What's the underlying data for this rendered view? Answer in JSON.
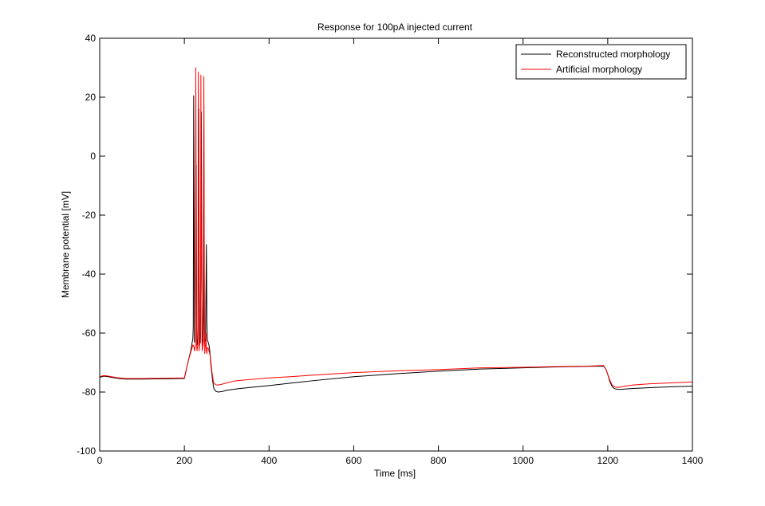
{
  "chart_data": {
    "type": "line",
    "title": "Response for 100pA injected current",
    "xlabel": "Time [ms]",
    "ylabel": "Membrane potential [mV]",
    "xlim": [
      0,
      1400
    ],
    "ylim": [
      -100,
      40
    ],
    "xticks": [
      0,
      200,
      400,
      600,
      800,
      1000,
      1200,
      1400
    ],
    "yticks": [
      -100,
      -80,
      -60,
      -40,
      -20,
      0,
      20,
      40
    ],
    "grid": false,
    "legend_position": "top-right",
    "series": [
      {
        "name": "Reconstructed morphology",
        "color": "#000000",
        "x": [
          0,
          10,
          20,
          40,
          60,
          80,
          100,
          150,
          200,
          205,
          210,
          215,
          218,
          220,
          221,
          222,
          223,
          224,
          226,
          227,
          228,
          229,
          230,
          232,
          234,
          235,
          236,
          238,
          240,
          241,
          242,
          244,
          246,
          247,
          248,
          250,
          252,
          253,
          254,
          256,
          258,
          260,
          262,
          265,
          268,
          270,
          275,
          280,
          290,
          300,
          320,
          350,
          400,
          450,
          500,
          600,
          700,
          800,
          900,
          1000,
          1100,
          1150,
          1190,
          1195,
          1200,
          1205,
          1210,
          1215,
          1220,
          1225,
          1230,
          1240,
          1260,
          1300,
          1350,
          1400
        ],
        "y": [
          -75,
          -74.6,
          -74.8,
          -75.3,
          -75.6,
          -75.6,
          -75.6,
          -75.5,
          -75.4,
          -72,
          -69,
          -66,
          -63.5,
          -62,
          -58,
          20.5,
          -18,
          -63,
          -62,
          -25,
          -3,
          -58,
          -64,
          -62,
          16,
          -40,
          -64,
          -62,
          15,
          -44,
          -64,
          -62,
          17,
          -55,
          -63,
          -62,
          -30,
          -56,
          -62,
          -63,
          -64,
          -66,
          -70,
          -74,
          -77.5,
          -79,
          -79.8,
          -80,
          -79.8,
          -79.4,
          -79,
          -78.5,
          -77.8,
          -77,
          -76.2,
          -74.8,
          -73.8,
          -72.9,
          -72.2,
          -71.8,
          -71.4,
          -71.3,
          -71.2,
          -72,
          -74,
          -76.5,
          -78,
          -78.8,
          -79,
          -79.1,
          -79.1,
          -79,
          -78.8,
          -78.5,
          -78.2,
          -78
        ]
      },
      {
        "name": "Artificial morphology",
        "color": "#ff0000",
        "x": [
          0,
          10,
          20,
          40,
          60,
          80,
          100,
          150,
          200,
          205,
          210,
          215,
          218,
          220,
          222,
          224,
          226,
          227,
          228,
          229,
          230,
          232,
          233,
          234,
          235,
          236,
          238,
          239,
          240,
          242,
          244,
          245,
          246,
          247,
          248,
          249,
          250,
          251,
          252,
          253,
          254,
          256,
          258,
          260,
          262,
          265,
          268,
          270,
          275,
          280,
          290,
          300,
          320,
          350,
          400,
          450,
          500,
          600,
          700,
          800,
          900,
          1000,
          1100,
          1150,
          1190,
          1195,
          1200,
          1205,
          1210,
          1215,
          1220,
          1225,
          1230,
          1240,
          1260,
          1300,
          1350,
          1400
        ],
        "y": [
          -74.8,
          -74.4,
          -74.6,
          -75.1,
          -75.4,
          -75.4,
          -75.4,
          -75.3,
          -75.2,
          -72,
          -69,
          -66.5,
          -65,
          -64,
          -64.5,
          -66,
          -64,
          30,
          -20,
          -64,
          -66,
          -64,
          28.5,
          -24,
          -66,
          -64,
          -63,
          27.5,
          -26,
          -66,
          -64,
          -63.5,
          27,
          -30,
          -67,
          -65,
          -64,
          -60,
          -66,
          -67,
          -65,
          -65,
          -66,
          -67,
          -69,
          -73,
          -76,
          -77,
          -77.6,
          -77.6,
          -77.3,
          -76.9,
          -76.2,
          -75.8,
          -75.2,
          -74.8,
          -74.3,
          -73.4,
          -72.8,
          -72.4,
          -71.8,
          -71.6,
          -71.3,
          -71.2,
          -71,
          -72,
          -74,
          -76,
          -77.5,
          -78.2,
          -78.4,
          -78.4,
          -78.3,
          -78,
          -77.6,
          -77.2,
          -76.9,
          -76.6
        ]
      }
    ]
  }
}
